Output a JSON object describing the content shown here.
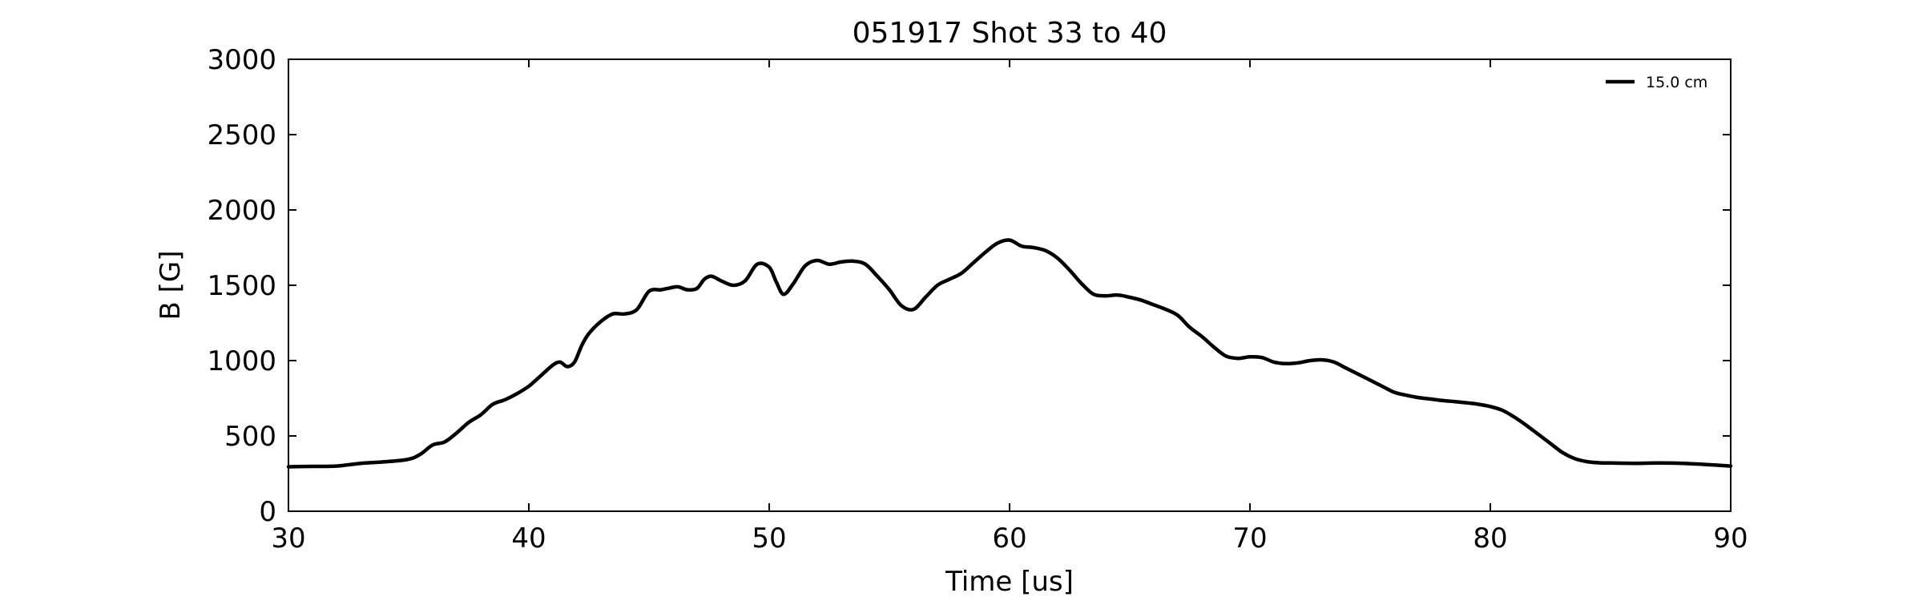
{
  "chart_data": {
    "type": "line",
    "title": "051917 Shot 33 to 40",
    "xlabel": "Time [us]",
    "ylabel": "B [G]",
    "xlim": [
      30,
      90
    ],
    "ylim": [
      0,
      3000
    ],
    "xticks": [
      30,
      40,
      50,
      60,
      70,
      80,
      90
    ],
    "yticks": [
      0,
      500,
      1000,
      1500,
      2000,
      2500,
      3000
    ],
    "grid": false,
    "legend_position": "top-right",
    "series": [
      {
        "name": "15.0 cm",
        "color": "#000000",
        "x": [
          30,
          31,
          32,
          33,
          34,
          35,
          35.5,
          36,
          36.5,
          37,
          37.5,
          38,
          38.5,
          39,
          39.5,
          40,
          40.5,
          41,
          41.3,
          41.6,
          41.9,
          42.2,
          42.5,
          43,
          43.5,
          44,
          44.5,
          45,
          45.5,
          45.8,
          46.2,
          46.6,
          47,
          47.3,
          47.6,
          48,
          48.5,
          49,
          49.5,
          50,
          50.3,
          50.6,
          51,
          51.5,
          52,
          52.5,
          53,
          53.5,
          54,
          54.5,
          55,
          55.5,
          56,
          56.5,
          57,
          57.5,
          58,
          58.5,
          59,
          59.5,
          60,
          60.5,
          61,
          61.5,
          62,
          62.5,
          63,
          63.5,
          64,
          64.5,
          65,
          65.5,
          66,
          66.5,
          67,
          67.5,
          68,
          68.5,
          69,
          69.5,
          70,
          70.5,
          71,
          71.5,
          72,
          72.5,
          73,
          73.5,
          74,
          74.5,
          75,
          75.5,
          76,
          76.5,
          77,
          77.5,
          78,
          78.5,
          79,
          79.5,
          80,
          80.5,
          81,
          81.5,
          82,
          82.5,
          83,
          83.5,
          84,
          84.5,
          85,
          86,
          87,
          88,
          89,
          90
        ],
        "y": [
          295,
          298,
          300,
          318,
          328,
          345,
          380,
          440,
          460,
          520,
          590,
          640,
          710,
          740,
          780,
          830,
          900,
          970,
          990,
          960,
          990,
          1100,
          1180,
          1260,
          1310,
          1310,
          1340,
          1460,
          1470,
          1480,
          1490,
          1470,
          1480,
          1540,
          1560,
          1530,
          1500,
          1530,
          1640,
          1620,
          1520,
          1440,
          1510,
          1630,
          1665,
          1640,
          1655,
          1660,
          1640,
          1560,
          1470,
          1365,
          1340,
          1420,
          1500,
          1540,
          1580,
          1650,
          1720,
          1780,
          1800,
          1760,
          1750,
          1730,
          1680,
          1600,
          1510,
          1440,
          1430,
          1435,
          1420,
          1400,
          1370,
          1340,
          1300,
          1220,
          1160,
          1090,
          1030,
          1015,
          1025,
          1020,
          990,
          980,
          985,
          1000,
          1005,
          990,
          950,
          910,
          870,
          830,
          790,
          770,
          755,
          745,
          735,
          728,
          720,
          710,
          695,
          670,
          625,
          570,
          510,
          450,
          390,
          350,
          330,
          322,
          320,
          318,
          320,
          318,
          310,
          300
        ]
      }
    ]
  }
}
